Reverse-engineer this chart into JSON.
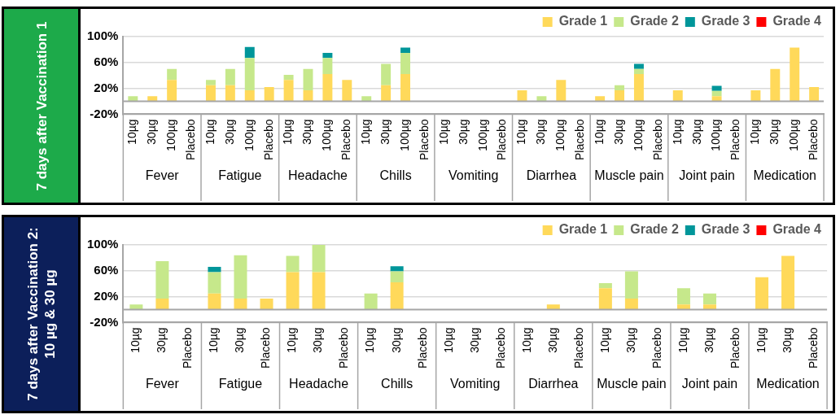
{
  "chart_data": [
    {
      "type": "bar",
      "title": "7 days after Vaccination 1",
      "stacked": true,
      "grid": "y",
      "legend": "top right",
      "categories": [
        "10µg",
        "30µg",
        "100µg",
        "Placebo",
        "10µg",
        "30µg",
        "100µg",
        "Placebo",
        "10µg",
        "30µg",
        "100µg",
        "Placebo",
        "10µg",
        "30µg",
        "100µg",
        "Placebo",
        "10µg",
        "30µg",
        "100µg",
        "Placebo",
        "10µg",
        "30µg",
        "100µg",
        "Placebo",
        "10µg",
        "30µg",
        "100µg",
        "Placebo",
        "10µg",
        "30µg",
        "100µg",
        "Placebo",
        "10µg",
        "30µg",
        "100µg",
        "Placebo"
      ],
      "series": [
        {
          "name": "Grade 1",
          "color": "#ffd95a",
          "values": [
            0,
            8,
            33,
            0,
            25,
            25,
            17,
            22,
            33,
            17,
            42,
            33,
            0,
            25,
            42,
            0,
            0,
            0,
            0,
            0,
            17,
            0,
            33,
            0,
            8,
            17,
            42,
            0,
            17,
            0,
            8,
            0,
            17,
            50,
            83,
            22
          ]
        },
        {
          "name": "Grade 2",
          "color": "#c6e88b",
          "values": [
            8,
            0,
            17,
            0,
            8,
            25,
            50,
            0,
            8,
            33,
            25,
            0,
            8,
            33,
            33,
            0,
            0,
            0,
            0,
            0,
            0,
            8,
            0,
            0,
            0,
            8,
            8,
            0,
            0,
            0,
            8,
            0,
            0,
            0,
            0,
            0
          ]
        },
        {
          "name": "Grade 3",
          "color": "#00969a",
          "values": [
            0,
            0,
            0,
            0,
            0,
            0,
            17,
            0,
            0,
            0,
            8,
            0,
            0,
            0,
            8,
            0,
            0,
            0,
            0,
            0,
            0,
            0,
            0,
            0,
            0,
            0,
            8,
            0,
            0,
            0,
            8,
            0,
            0,
            0,
            0,
            0
          ]
        },
        {
          "name": "Grade 4",
          "color": "#ff0000",
          "values": [
            0,
            0,
            0,
            0,
            0,
            0,
            0,
            0,
            0,
            0,
            0,
            0,
            0,
            0,
            0,
            0,
            0,
            0,
            0,
            0,
            0,
            0,
            0,
            0,
            0,
            0,
            0,
            0,
            0,
            0,
            0,
            0,
            0,
            0,
            0,
            0
          ]
        }
      ],
      "ylim": [
        -20,
        100
      ],
      "yticks": [
        {
          "value": -20,
          "label": "-20%"
        },
        {
          "value": 20,
          "label": "20%"
        },
        {
          "value": 60,
          "label": "60%"
        },
        {
          "value": 100,
          "label": "100%"
        }
      ],
      "ref_lines": [
        {
          "axis": "y",
          "value": 0,
          "color": "#a6a6a6"
        }
      ],
      "annotations": [
        "Fever",
        "Fatigue",
        "Headache",
        "Chills",
        "Vomiting",
        "Diarrhea",
        "Muscle pain",
        "Joint pain",
        "Medication"
      ]
    },
    {
      "type": "bar",
      "title": "7 days after Vaccination 2: 10 µg & 30 µg",
      "stacked": true,
      "grid": "y",
      "legend": "top right",
      "categories": [
        "10µg",
        "30µg",
        "Placebo",
        "10µg",
        "30µg",
        "Placebo",
        "10µg",
        "30µg",
        "Placebo",
        "10µg",
        "30µg",
        "Placebo",
        "10µg",
        "30µg",
        "Placebo",
        "10µg",
        "30µg",
        "Placebo",
        "10µg",
        "30µg",
        "Placebo",
        "10µg",
        "30µg",
        "Placebo",
        "10µg",
        "30µg",
        "Placebo"
      ],
      "series": [
        {
          "name": "Grade 1",
          "color": "#ffd95a",
          "values": [
            0,
            17,
            0,
            25,
            17,
            17,
            58,
            58,
            0,
            0,
            42,
            0,
            0,
            0,
            0,
            0,
            8,
            0,
            33,
            17,
            0,
            8,
            8,
            0,
            50,
            83,
            0
          ]
        },
        {
          "name": "Grade 2",
          "color": "#c6e88b",
          "values": [
            8,
            58,
            0,
            33,
            67,
            0,
            25,
            42,
            0,
            25,
            17,
            0,
            0,
            0,
            0,
            0,
            0,
            0,
            8,
            42,
            0,
            25,
            17,
            0,
            0,
            0,
            0
          ]
        },
        {
          "name": "Grade 3",
          "color": "#00969a",
          "values": [
            0,
            0,
            0,
            8,
            0,
            0,
            0,
            0,
            0,
            0,
            8,
            0,
            0,
            0,
            0,
            0,
            0,
            0,
            0,
            0,
            0,
            0,
            0,
            0,
            0,
            0,
            0
          ]
        },
        {
          "name": "Grade 4",
          "color": "#ff0000",
          "values": [
            0,
            0,
            0,
            0,
            0,
            0,
            0,
            0,
            0,
            0,
            0,
            0,
            0,
            0,
            0,
            0,
            0,
            0,
            0,
            0,
            0,
            0,
            0,
            0,
            0,
            0,
            0
          ]
        }
      ],
      "ylim": [
        -20,
        100
      ],
      "yticks": [
        {
          "value": -20,
          "label": "-20%"
        },
        {
          "value": 20,
          "label": "20%"
        },
        {
          "value": 60,
          "label": "60%"
        },
        {
          "value": 100,
          "label": "100%"
        }
      ],
      "ref_lines": [
        {
          "axis": "y",
          "value": 0,
          "color": "#a6a6a6"
        }
      ],
      "annotations": [
        "Fever",
        "Fatigue",
        "Headache",
        "Chills",
        "Vomiting",
        "Diarrhea",
        "Muscle pain",
        "Joint pain",
        "Medication"
      ]
    }
  ]
}
